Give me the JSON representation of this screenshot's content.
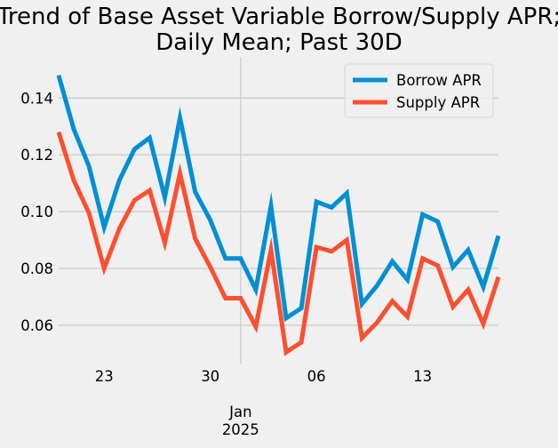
{
  "chart_data": {
    "type": "line",
    "title": [
      "Trend of Base Asset Variable Borrow/Supply APR;",
      "Daily Mean; Past 30D"
    ],
    "xlabel": "",
    "ylabel": "",
    "x": [
      "2024-12-20",
      "2024-12-21",
      "2024-12-22",
      "2024-12-23",
      "2024-12-24",
      "2024-12-25",
      "2024-12-26",
      "2024-12-27",
      "2024-12-28",
      "2024-12-29",
      "2024-12-30",
      "2024-12-31",
      "2025-01-01",
      "2025-01-02",
      "2025-01-03",
      "2025-01-04",
      "2025-01-05",
      "2025-01-06",
      "2025-01-07",
      "2025-01-08",
      "2025-01-09",
      "2025-01-10",
      "2025-01-11",
      "2025-01-12",
      "2025-01-13",
      "2025-01-14",
      "2025-01-15",
      "2025-01-16",
      "2025-01-17",
      "2025-01-18"
    ],
    "xlim": [
      "2024-12-20",
      "2025-01-18"
    ],
    "ylim": [
      0.0465,
      0.1545
    ],
    "x_ticks": [
      {
        "date": "2024-12-23",
        "label": "23"
      },
      {
        "date": "2024-12-30",
        "label": "30"
      },
      {
        "date": "2025-01-06",
        "label": "06"
      },
      {
        "date": "2025-01-13",
        "label": "13"
      }
    ],
    "x_major_tick": {
      "date": "2025-01-01",
      "label": [
        "Jan",
        "2025"
      ]
    },
    "y_ticks": [
      {
        "value": 0.06,
        "label": "0.06"
      },
      {
        "value": 0.08,
        "label": "0.08"
      },
      {
        "value": 0.1,
        "label": "0.10"
      },
      {
        "value": 0.12,
        "label": "0.12"
      },
      {
        "value": 0.14,
        "label": "0.14"
      }
    ],
    "grid": true,
    "legend_position": "top-right",
    "series": [
      {
        "name": "Borrow APR",
        "color": "#008fd5",
        "values": [
          0.148,
          0.129,
          0.116,
          0.0945,
          0.111,
          0.122,
          0.126,
          0.105,
          0.133,
          0.107,
          0.097,
          0.0835,
          0.0835,
          0.0725,
          0.102,
          0.0625,
          0.066,
          0.1035,
          0.1015,
          0.1065,
          0.0675,
          0.074,
          0.0825,
          0.076,
          0.099,
          0.0965,
          0.0805,
          0.0865,
          0.0735,
          0.0915
        ]
      },
      {
        "name": "Supply APR",
        "color": "#fc4f30",
        "values": [
          0.128,
          0.111,
          0.0995,
          0.08,
          0.094,
          0.104,
          0.1075,
          0.089,
          0.1135,
          0.0905,
          0.0805,
          0.0695,
          0.0695,
          0.0595,
          0.0865,
          0.0505,
          0.054,
          0.0875,
          0.086,
          0.09,
          0.0555,
          0.061,
          0.0685,
          0.063,
          0.0835,
          0.081,
          0.0665,
          0.0725,
          0.0605,
          0.077
        ]
      }
    ]
  }
}
